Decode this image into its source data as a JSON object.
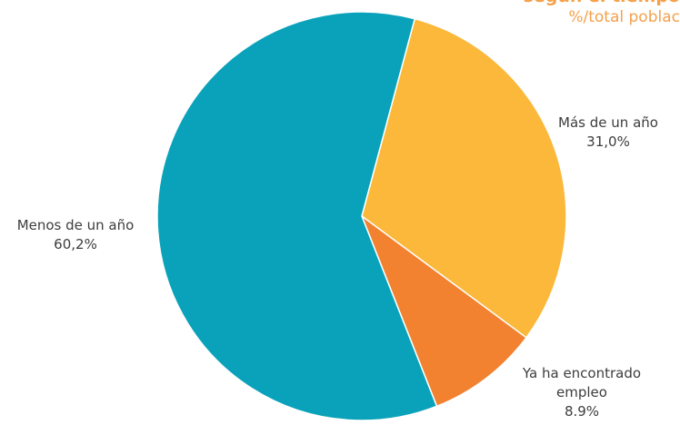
{
  "chart_data": {
    "type": "pie",
    "title": "según el tiempo",
    "subtitle": "%/total poblac",
    "slices": [
      {
        "label": "Más de un año",
        "value": 31.0,
        "value_label": "31,0%",
        "color": "#fbb83a"
      },
      {
        "label": "Ya ha encontrado empleo",
        "value": 8.9,
        "value_label": "8.9%",
        "color": "#f28130"
      },
      {
        "label": "Menos de un año",
        "value": 60.2,
        "value_label": "60,2%",
        "color": "#0aa2ba"
      }
    ],
    "legend": "none"
  }
}
